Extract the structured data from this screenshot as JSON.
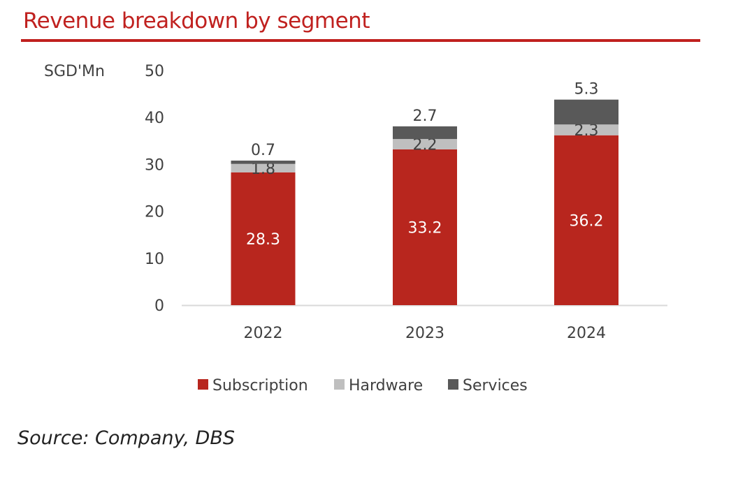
{
  "title": "Revenue breakdown by segment",
  "source": "Source: Company, DBS",
  "chart_data": {
    "type": "bar",
    "stacked": true,
    "title": "Revenue breakdown by segment",
    "ylabel": "SGD'Mn",
    "xlabel": "",
    "ylim": [
      0,
      50
    ],
    "yticks": [
      0,
      10,
      20,
      30,
      40,
      50
    ],
    "categories": [
      "2022",
      "2023",
      "2024"
    ],
    "series": [
      {
        "name": "Subscription",
        "color": "#B8261E",
        "values": [
          28.3,
          33.2,
          36.2
        ],
        "labels": [
          "28.3",
          "33.2",
          "36.2"
        ]
      },
      {
        "name": "Hardware",
        "color": "#BFBFBF",
        "values": [
          1.8,
          2.2,
          2.3
        ],
        "labels": [
          "1.8",
          "2.2",
          "2.3"
        ]
      },
      {
        "name": "Services",
        "color": "#595959",
        "values": [
          0.7,
          2.7,
          5.3
        ],
        "labels": [
          "0.7",
          "2.7",
          "5.3"
        ]
      }
    ],
    "legend_position": "bottom",
    "grid": false
  }
}
